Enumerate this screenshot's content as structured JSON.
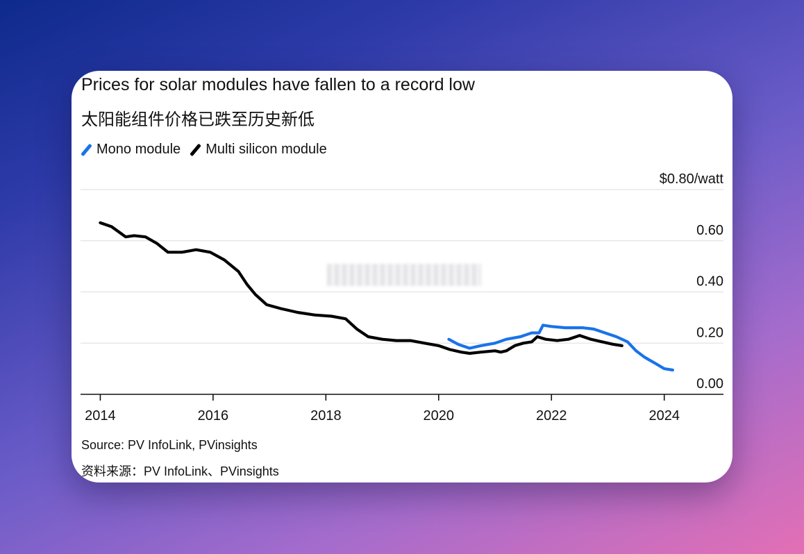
{
  "title": "Prices for solar modules have fallen to a record low",
  "subtitle": "太阳能组件价格已跌至历史新低",
  "source": "Source: PV InfoLink, PVinsights",
  "source_cn": "资料来源：PV InfoLink、PVinsights",
  "chart_data": {
    "type": "line",
    "title": "Prices for solar modules have fallen to a record low",
    "ylabel": "$0.80/watt",
    "ylim": [
      0,
      0.8
    ],
    "xlim": [
      2013.65,
      2025.05
    ],
    "x_ticks": [
      {
        "value": 2014,
        "label": "2014"
      },
      {
        "value": 2016,
        "label": "2016"
      },
      {
        "value": 2018,
        "label": "2018"
      },
      {
        "value": 2020,
        "label": "2020"
      },
      {
        "value": 2022,
        "label": "2022"
      },
      {
        "value": 2024,
        "label": "2024"
      }
    ],
    "y_ticks": [
      {
        "value": 0.8,
        "label": "$0.80/watt"
      },
      {
        "value": 0.6,
        "label": "0.60"
      },
      {
        "value": 0.4,
        "label": "0.40"
      },
      {
        "value": 0.2,
        "label": "0.20"
      },
      {
        "value": 0.0,
        "label": "0.00"
      }
    ],
    "grid": true,
    "legend": "top-left",
    "series": [
      {
        "name": "Mono module",
        "color": "#1a73e8",
        "points": [
          [
            2020.18,
            0.215
          ],
          [
            2020.35,
            0.195
          ],
          [
            2020.55,
            0.18
          ],
          [
            2020.75,
            0.19
          ],
          [
            2021.0,
            0.2
          ],
          [
            2021.2,
            0.215
          ],
          [
            2021.45,
            0.225
          ],
          [
            2021.65,
            0.24
          ],
          [
            2021.78,
            0.24
          ],
          [
            2021.85,
            0.27
          ],
          [
            2022.0,
            0.265
          ],
          [
            2022.25,
            0.26
          ],
          [
            2022.55,
            0.26
          ],
          [
            2022.75,
            0.255
          ],
          [
            2022.95,
            0.24
          ],
          [
            2023.15,
            0.225
          ],
          [
            2023.35,
            0.205
          ],
          [
            2023.5,
            0.17
          ],
          [
            2023.65,
            0.145
          ],
          [
            2023.85,
            0.12
          ],
          [
            2024.0,
            0.1
          ],
          [
            2024.15,
            0.095
          ]
        ]
      },
      {
        "name": "Multi silicon module",
        "color": "#000000",
        "points": [
          [
            2014.0,
            0.67
          ],
          [
            2014.2,
            0.655
          ],
          [
            2014.45,
            0.615
          ],
          [
            2014.6,
            0.62
          ],
          [
            2014.8,
            0.615
          ],
          [
            2015.0,
            0.59
          ],
          [
            2015.2,
            0.555
          ],
          [
            2015.45,
            0.555
          ],
          [
            2015.7,
            0.565
          ],
          [
            2015.95,
            0.555
          ],
          [
            2016.2,
            0.525
          ],
          [
            2016.45,
            0.48
          ],
          [
            2016.6,
            0.43
          ],
          [
            2016.75,
            0.39
          ],
          [
            2016.95,
            0.35
          ],
          [
            2017.2,
            0.335
          ],
          [
            2017.5,
            0.32
          ],
          [
            2017.8,
            0.31
          ],
          [
            2018.1,
            0.305
          ],
          [
            2018.35,
            0.295
          ],
          [
            2018.55,
            0.255
          ],
          [
            2018.75,
            0.225
          ],
          [
            2019.0,
            0.215
          ],
          [
            2019.25,
            0.21
          ],
          [
            2019.5,
            0.21
          ],
          [
            2019.75,
            0.2
          ],
          [
            2020.0,
            0.19
          ],
          [
            2020.2,
            0.175
          ],
          [
            2020.4,
            0.165
          ],
          [
            2020.55,
            0.16
          ],
          [
            2020.75,
            0.165
          ],
          [
            2021.0,
            0.17
          ],
          [
            2021.1,
            0.165
          ],
          [
            2021.2,
            0.17
          ],
          [
            2021.35,
            0.19
          ],
          [
            2021.5,
            0.2
          ],
          [
            2021.65,
            0.205
          ],
          [
            2021.75,
            0.225
          ],
          [
            2021.9,
            0.215
          ],
          [
            2022.1,
            0.21
          ],
          [
            2022.3,
            0.215
          ],
          [
            2022.5,
            0.23
          ],
          [
            2022.7,
            0.215
          ],
          [
            2022.9,
            0.205
          ],
          [
            2023.1,
            0.195
          ],
          [
            2023.25,
            0.19
          ]
        ]
      }
    ]
  }
}
